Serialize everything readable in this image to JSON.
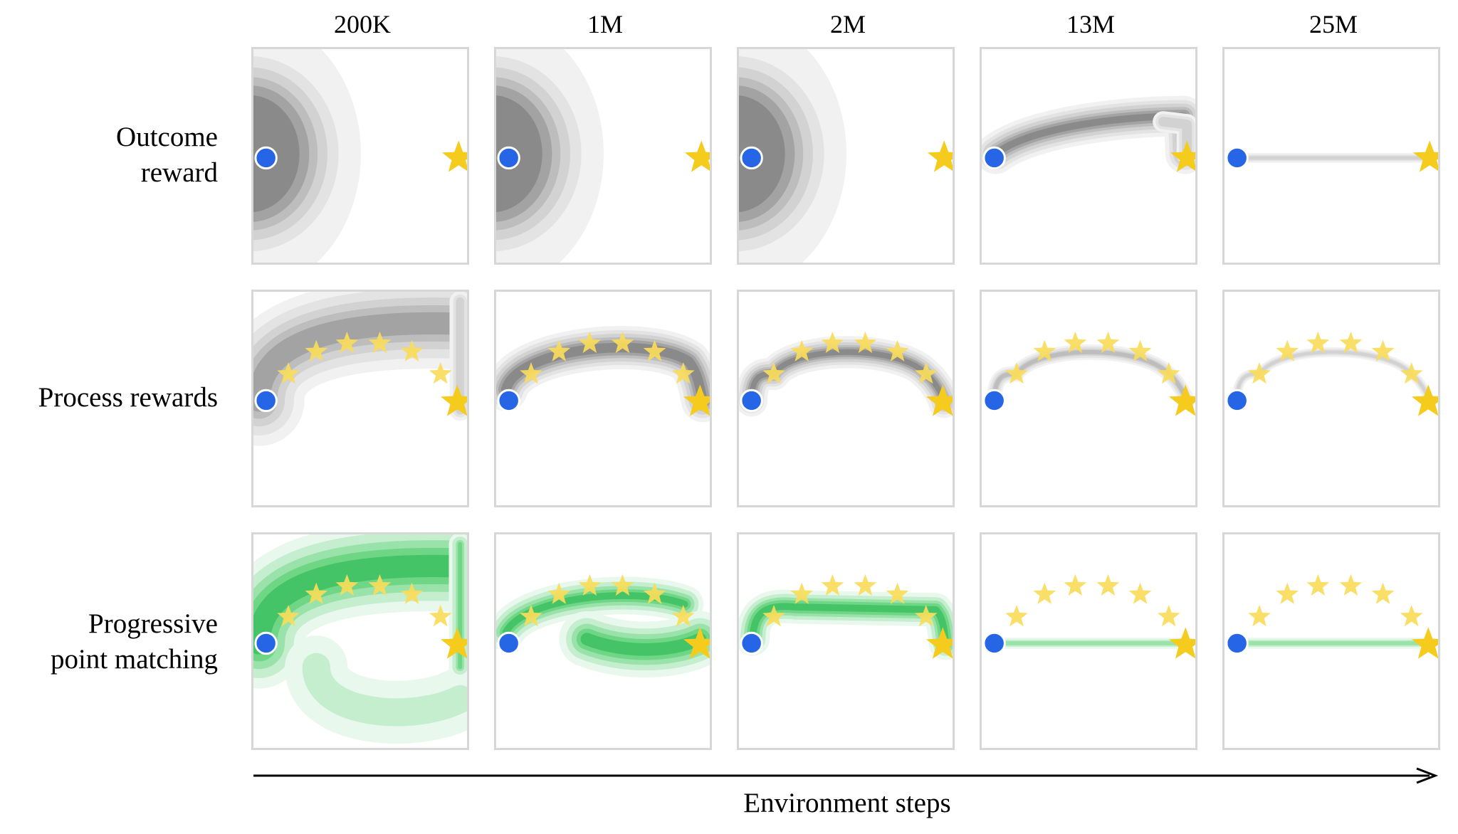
{
  "columns": [
    "200K",
    "1M",
    "2M",
    "13M",
    "25M"
  ],
  "rows": [
    {
      "label_line1": "Outcome",
      "label_line2": "reward",
      "palette": "gray",
      "stars": "final"
    },
    {
      "label_line1": "Process rewards",
      "label_line2": "",
      "palette": "gray",
      "stars": "arc"
    },
    {
      "label_line1": "Progressive",
      "label_line2": "point matching",
      "palette": "green",
      "stars": "arc"
    }
  ],
  "x_axis_label": "Environment steps",
  "colors": {
    "gray_levels": [
      "#f1f1f1",
      "#e3e3e3",
      "#d2d2d2",
      "#bdbdbd",
      "#a3a3a3",
      "#8a8a8a"
    ],
    "green_levels": [
      "#e9f8ec",
      "#c4eecd",
      "#99e2a9",
      "#6fd686",
      "#44c466",
      "#1f9e47"
    ],
    "start_marker": "#2565e6",
    "star": "#f5cc1d",
    "star_light": "#f8dc5a",
    "panel_border": "#d7d7d7"
  }
}
